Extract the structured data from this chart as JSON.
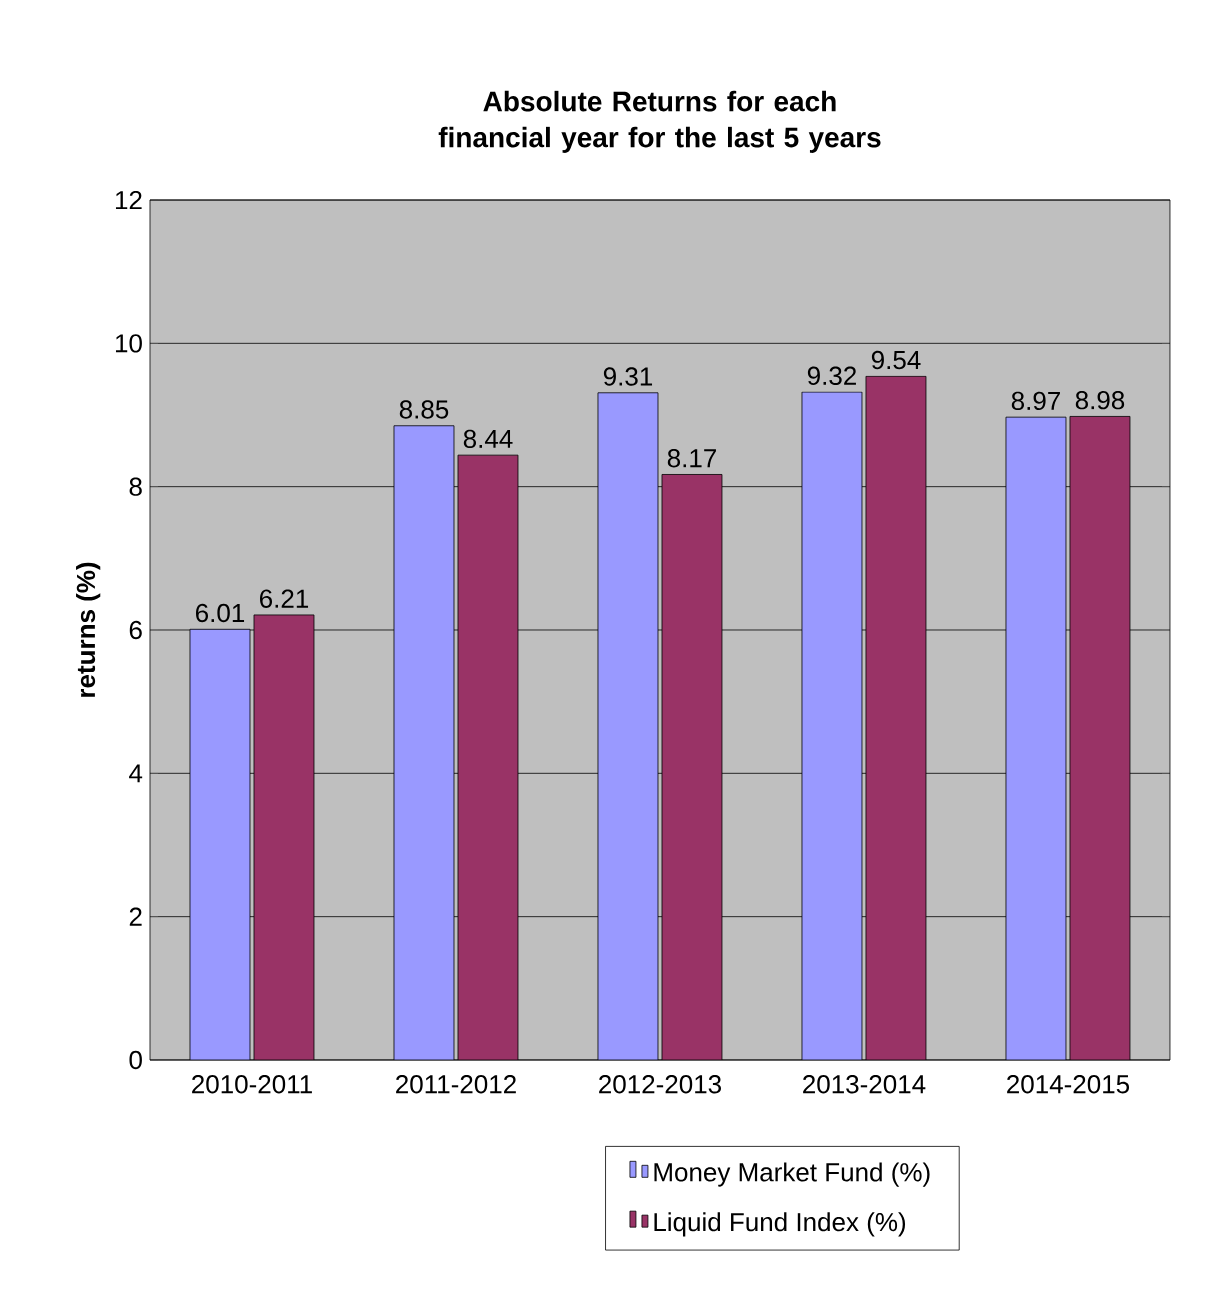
{
  "chart_data": {
    "type": "bar",
    "title": "Absolute Returns for each financial year for the last 5 years",
    "ylabel": "returns (%)",
    "categories": [
      "2010-2011",
      "2011-2012",
      "2012-2013",
      "2013-2014",
      "2014-2015"
    ],
    "series": [
      {
        "name": "Money Market Fund (%)",
        "color": "#9999ff",
        "values": [
          6.01,
          8.85,
          9.31,
          9.32,
          8.97
        ]
      },
      {
        "name": "Liquid Fund Index (%)",
        "color": "#993366",
        "values": [
          6.21,
          8.44,
          8.17,
          9.54,
          8.98
        ]
      }
    ],
    "ylim": [
      0,
      12
    ],
    "yticks": [
      0,
      2,
      4,
      6,
      8,
      10,
      12
    ],
    "grid": "y",
    "legend": "bottom",
    "data_labels": true
  }
}
